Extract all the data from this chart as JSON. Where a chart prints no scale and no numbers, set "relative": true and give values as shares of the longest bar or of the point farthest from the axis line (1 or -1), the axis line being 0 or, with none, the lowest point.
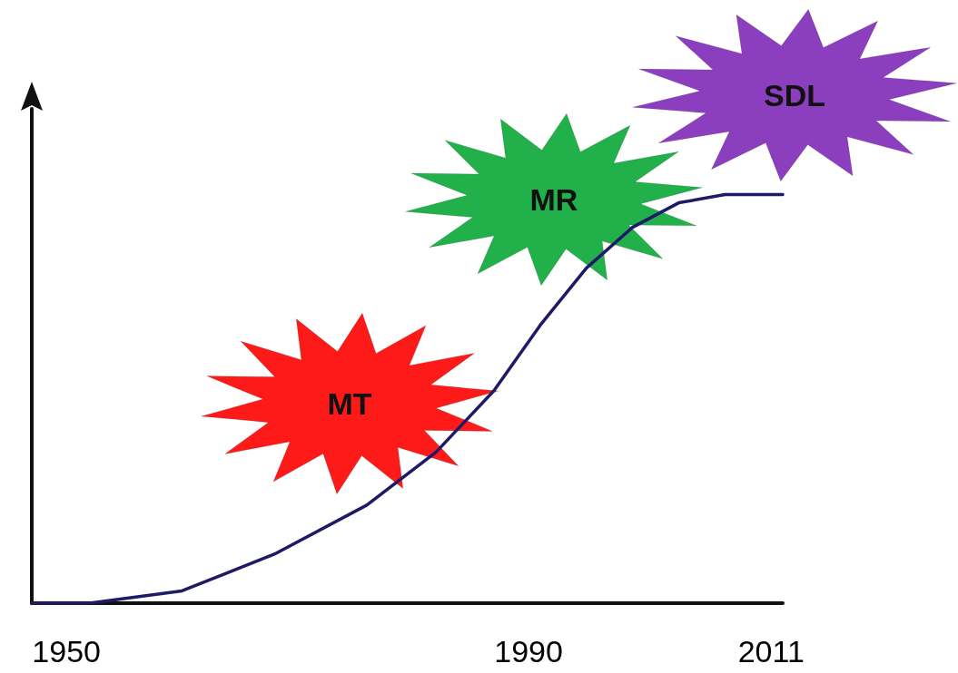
{
  "chart_data": {
    "type": "line",
    "relative": true,
    "x": [
      1947,
      1952,
      1960,
      1968,
      1976,
      1982,
      1987,
      1991,
      1995,
      1999,
      2003,
      2007,
      2012
    ],
    "series": [
      {
        "color": "#1f1a66",
        "values": [
          0,
          0,
          0.03,
          0.12,
          0.24,
          0.37,
          0.52,
          0.68,
          0.82,
          0.92,
          0.98,
          1,
          1
        ]
      }
    ],
    "xlim": [
      1947,
      2012
    ],
    "xticks": [
      1950,
      1990,
      2011
    ],
    "grid": false,
    "marker": "none",
    "line_style": "solid",
    "annotations": [
      "MT",
      "MR",
      "SDL"
    ]
  }
}
